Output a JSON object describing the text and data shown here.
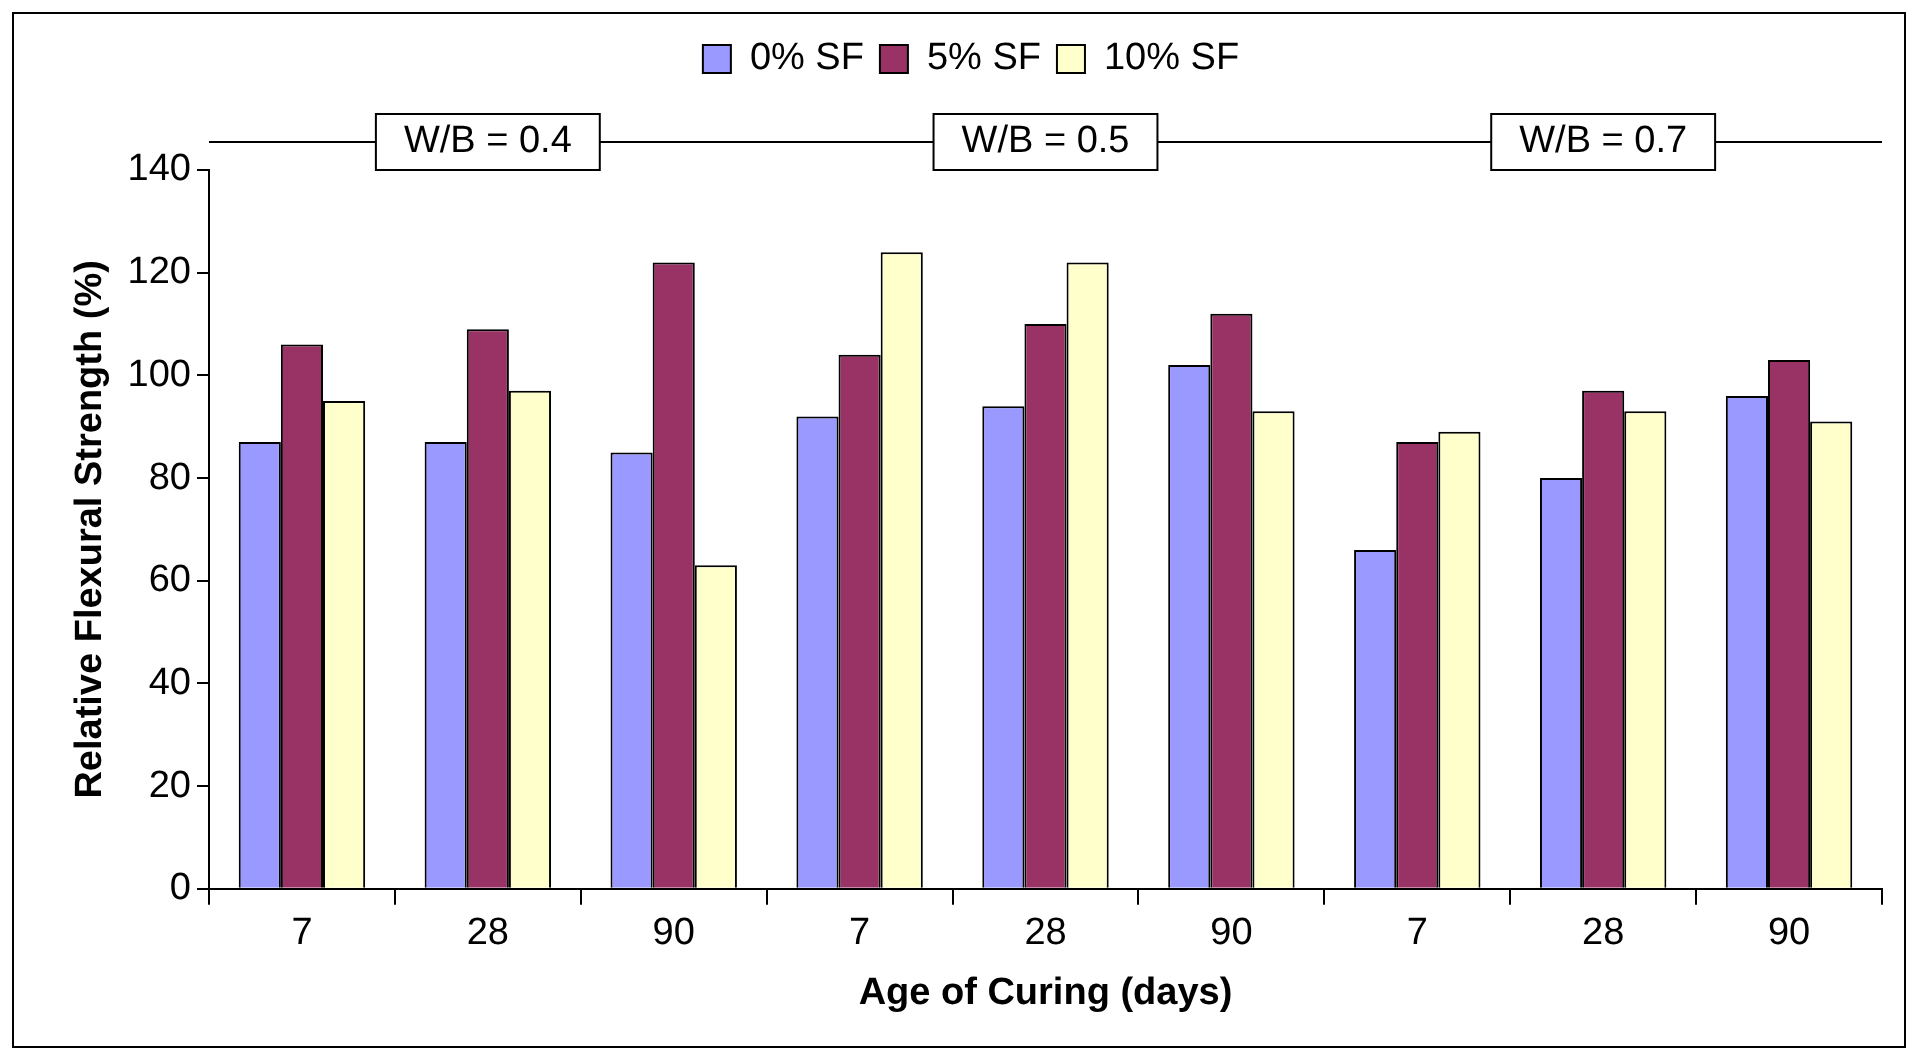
{
  "chart_data": {
    "type": "bar",
    "xlabel": "Age of Curing (days)",
    "ylabel": "Relative Flexural Strength (%)",
    "categories": [
      "7",
      "28",
      "90",
      "7",
      "28",
      "90",
      "7",
      "28",
      "90"
    ],
    "series": [
      {
        "name": "0% SF",
        "color": "#9999ff",
        "values": [
          87,
          87,
          85,
          92,
          94,
          102,
          66,
          80,
          96
        ]
      },
      {
        "name": "5% SF",
        "color": "#993366",
        "values": [
          106,
          109,
          122,
          104,
          110,
          112,
          87,
          97,
          103
        ]
      },
      {
        "name": "10% SF",
        "color": "#ffffcc",
        "values": [
          95,
          97,
          63,
          124,
          122,
          93,
          89,
          93,
          91
        ]
      }
    ],
    "annotations": [
      "W/B = 0.4",
      "W/B = 0.5",
      "W/B = 0.7"
    ],
    "ylim": [
      0,
      140
    ],
    "yticks": [
      0,
      20,
      40,
      60,
      80,
      100,
      120,
      140
    ],
    "grid": false,
    "legend": "top"
  }
}
